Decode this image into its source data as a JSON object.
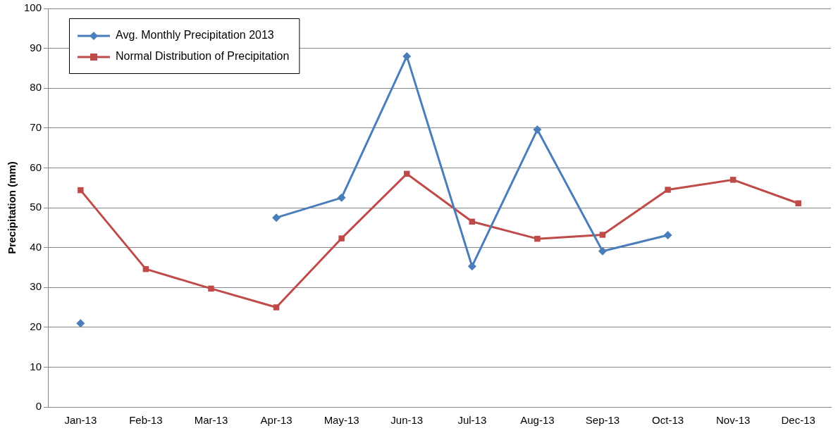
{
  "chart_data": {
    "type": "line",
    "ylabel": "Precipitation (mm)",
    "categories": [
      "Jan-13",
      "Feb-13",
      "Mar-13",
      "Apr-13",
      "May-13",
      "Jun-13",
      "Jul-13",
      "Aug-13",
      "Sep-13",
      "Oct-13",
      "Nov-13",
      "Dec-13"
    ],
    "series": [
      {
        "name": "Avg. Monthly Precipitation 2013",
        "color": "#4a7ebb",
        "marker": "diamond",
        "values": [
          21,
          null,
          null,
          47.5,
          52.5,
          88,
          35.3,
          69.6,
          39.1,
          43.1,
          null,
          null
        ]
      },
      {
        "name": "Normal Distribution of Precipitation",
        "color": "#be4b48",
        "marker": "square",
        "values": [
          54.4,
          34.6,
          29.7,
          25,
          42.3,
          58.5,
          46.5,
          42.2,
          43.2,
          54.5,
          57,
          51.1
        ]
      }
    ],
    "ylim": [
      0,
      100
    ],
    "yticks": [
      0,
      10,
      20,
      30,
      40,
      50,
      60,
      70,
      80,
      90,
      100
    ],
    "grid": "y",
    "legend": "top left",
    "line_style": "solid"
  }
}
